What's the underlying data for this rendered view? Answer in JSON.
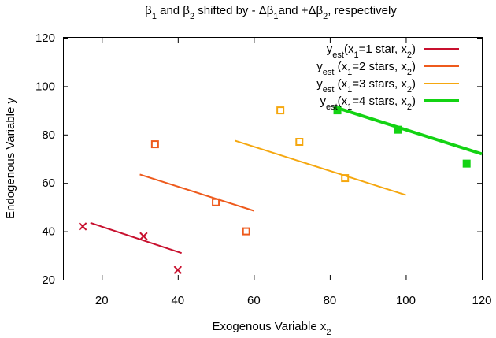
{
  "chart_data": {
    "type": "scatter",
    "title_parts": [
      {
        "text": "β",
        "sub": false
      },
      {
        "text": "1",
        "sub": true
      },
      {
        "text": " and β",
        "sub": false
      },
      {
        "text": "2",
        "sub": true
      },
      {
        "text": " shifted by - Δβ",
        "sub": false
      },
      {
        "text": "1",
        "sub": true
      },
      {
        "text": "and +Δβ",
        "sub": false
      },
      {
        "text": "2",
        "sub": true
      },
      {
        "text": ", respectively",
        "sub": false
      }
    ],
    "xlabel_parts": [
      {
        "text": "Exogenous Variable x",
        "sub": false
      },
      {
        "text": "2",
        "sub": true
      }
    ],
    "ylabel": "Endogenous Variable y",
    "xlim": [
      10,
      120
    ],
    "ylim": [
      20,
      120
    ],
    "xticks": [
      "20",
      "40",
      "60",
      "80",
      "100",
      "120"
    ],
    "yticks": [
      "20",
      "40",
      "60",
      "80",
      "100",
      "120"
    ],
    "grid": false,
    "legend_position": "top-right",
    "series": [
      {
        "name_parts": [
          {
            "text": "y",
            "sub": false
          },
          {
            "text": "est",
            "sub": true
          },
          {
            "text": "(x",
            "sub": false
          },
          {
            "text": "1",
            "sub": true
          },
          {
            "text": "=1 star, x",
            "sub": false
          },
          {
            "text": "2",
            "sub": true
          },
          {
            "text": ")",
            "sub": false
          }
        ],
        "color": "#c8102e",
        "marker": "x",
        "line_width": 2,
        "points": [
          {
            "x": 15,
            "y": 42
          },
          {
            "x": 31,
            "y": 38
          },
          {
            "x": 40,
            "y": 24
          }
        ],
        "fit_line": [
          {
            "x": 17,
            "y": 43.5
          },
          {
            "x": 41,
            "y": 31
          }
        ]
      },
      {
        "name_parts": [
          {
            "text": "y",
            "sub": false
          },
          {
            "text": "est",
            "sub": true
          },
          {
            "text": " (x",
            "sub": false
          },
          {
            "text": "1",
            "sub": true
          },
          {
            "text": "=2 stars, x",
            "sub": false
          },
          {
            "text": "2",
            "sub": true
          },
          {
            "text": ")",
            "sub": false
          }
        ],
        "color": "#ee5a1c",
        "marker": "open-square",
        "line_width": 2,
        "points": [
          {
            "x": 34,
            "y": 76
          },
          {
            "x": 50,
            "y": 52
          },
          {
            "x": 58,
            "y": 40
          }
        ],
        "fit_line": [
          {
            "x": 30,
            "y": 63.5
          },
          {
            "x": 60,
            "y": 48.5
          }
        ]
      },
      {
        "name_parts": [
          {
            "text": "y",
            "sub": false
          },
          {
            "text": "est",
            "sub": true
          },
          {
            "text": " (x",
            "sub": false
          },
          {
            "text": "1",
            "sub": true
          },
          {
            "text": "=3 stars, x",
            "sub": false
          },
          {
            "text": "2",
            "sub": true
          },
          {
            "text": ")",
            "sub": false
          }
        ],
        "color": "#f5a70f",
        "marker": "open-square",
        "line_width": 2,
        "points": [
          {
            "x": 67,
            "y": 90
          },
          {
            "x": 72,
            "y": 77
          },
          {
            "x": 84,
            "y": 62
          }
        ],
        "fit_line": [
          {
            "x": 55,
            "y": 77.5
          },
          {
            "x": 100,
            "y": 55
          }
        ]
      },
      {
        "name_parts": [
          {
            "text": "y",
            "sub": false
          },
          {
            "text": "est",
            "sub": true
          },
          {
            "text": "(x",
            "sub": false
          },
          {
            "text": "1",
            "sub": true
          },
          {
            "text": "=4 stars, x",
            "sub": false
          },
          {
            "text": "2",
            "sub": true
          },
          {
            "text": ")",
            "sub": false
          }
        ],
        "color": "#13d313",
        "marker": "filled-square",
        "line_width": 4,
        "points": [
          {
            "x": 82,
            "y": 90
          },
          {
            "x": 98,
            "y": 82
          },
          {
            "x": 116,
            "y": 68
          }
        ],
        "fit_line": [
          {
            "x": 82,
            "y": 91
          },
          {
            "x": 120,
            "y": 72
          }
        ]
      }
    ]
  }
}
